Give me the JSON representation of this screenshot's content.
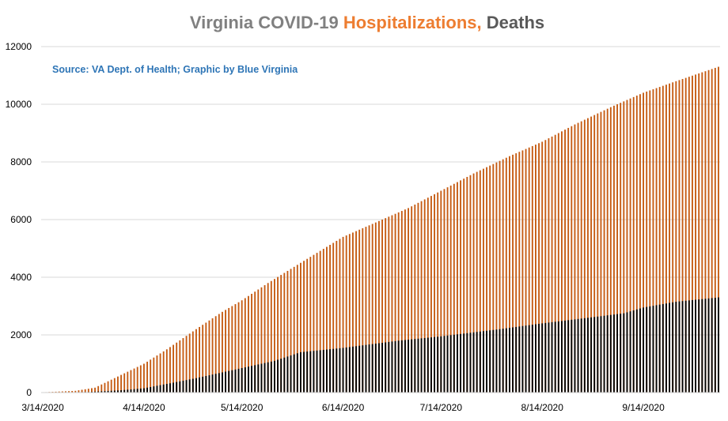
{
  "chart_data": {
    "type": "bar",
    "title": {
      "part1": "Virginia COVID-19 ",
      "part2": "Hospitalizations, ",
      "part3": "Deaths"
    },
    "source_note": "Source: VA Dept. of Health; Graphic by Blue Virginia",
    "x_tick_labels": [
      "3/14/2020",
      "4/14/2020",
      "5/14/2020",
      "6/14/2020",
      "7/14/2020",
      "8/14/2020",
      "9/14/2020"
    ],
    "y_tick_labels": [
      "0",
      "2000",
      "4000",
      "6000",
      "8000",
      "10000",
      "12000"
    ],
    "ylim": [
      0,
      12000
    ],
    "grid": true,
    "start_date": "3/14/2020",
    "end_date": "10/7/2020",
    "series": [
      {
        "name": "Hospitalizations",
        "color": "#C55A11",
        "keypoints": [
          {
            "date": "3/14/2020",
            "value": 10
          },
          {
            "date": "3/24/2020",
            "value": 60
          },
          {
            "date": "3/30/2020",
            "value": 170
          },
          {
            "date": "4/14/2020",
            "value": 1000
          },
          {
            "date": "4/21/2020",
            "value": 1500
          },
          {
            "date": "4/30/2020",
            "value": 2200
          },
          {
            "date": "5/8/2020",
            "value": 2800
          },
          {
            "date": "5/14/2020",
            "value": 3200
          },
          {
            "date": "5/22/2020",
            "value": 3800
          },
          {
            "date": "6/1/2020",
            "value": 4500
          },
          {
            "date": "6/14/2020",
            "value": 5400
          },
          {
            "date": "6/24/2020",
            "value": 5900
          },
          {
            "date": "7/4/2020",
            "value": 6400
          },
          {
            "date": "7/14/2020",
            "value": 7000
          },
          {
            "date": "7/24/2020",
            "value": 7600
          },
          {
            "date": "8/4/2020",
            "value": 8200
          },
          {
            "date": "8/14/2020",
            "value": 8700
          },
          {
            "date": "8/24/2020",
            "value": 9300
          },
          {
            "date": "9/4/2020",
            "value": 9900
          },
          {
            "date": "9/14/2020",
            "value": 10400
          },
          {
            "date": "9/24/2020",
            "value": 10800
          },
          {
            "date": "10/7/2020",
            "value": 11300
          }
        ]
      },
      {
        "name": "Deaths",
        "color": "#000000",
        "keypoints": [
          {
            "date": "3/14/2020",
            "value": 0
          },
          {
            "date": "3/28/2020",
            "value": 20
          },
          {
            "date": "4/7/2020",
            "value": 80
          },
          {
            "date": "4/14/2020",
            "value": 150
          },
          {
            "date": "4/21/2020",
            "value": 300
          },
          {
            "date": "4/30/2020",
            "value": 500
          },
          {
            "date": "5/14/2020",
            "value": 850
          },
          {
            "date": "5/24/2020",
            "value": 1100
          },
          {
            "date": "6/1/2020",
            "value": 1400
          },
          {
            "date": "6/14/2020",
            "value": 1550
          },
          {
            "date": "7/1/2020",
            "value": 1800
          },
          {
            "date": "7/14/2020",
            "value": 1950
          },
          {
            "date": "8/1/2020",
            "value": 2200
          },
          {
            "date": "8/14/2020",
            "value": 2400
          },
          {
            "date": "9/1/2020",
            "value": 2650
          },
          {
            "date": "9/8/2020",
            "value": 2750
          },
          {
            "date": "9/14/2020",
            "value": 2950
          },
          {
            "date": "9/24/2020",
            "value": 3150
          },
          {
            "date": "10/7/2020",
            "value": 3300
          }
        ]
      }
    ]
  }
}
